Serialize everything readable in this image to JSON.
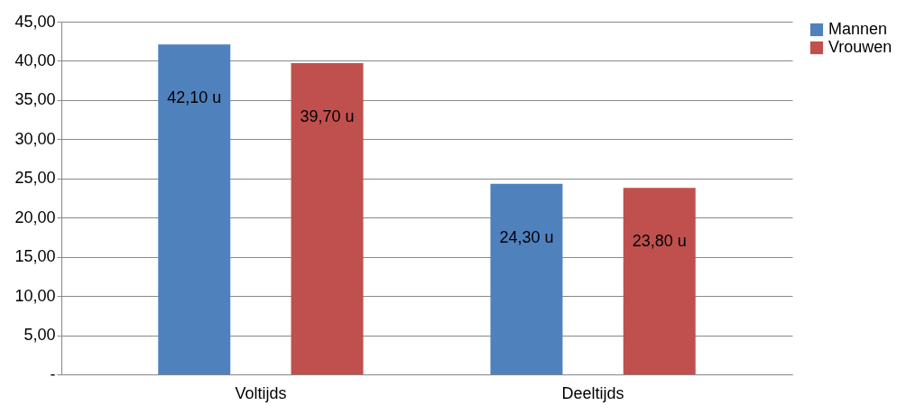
{
  "chart_data": {
    "type": "bar",
    "categories": [
      "Voltijds",
      "Deeltijds"
    ],
    "series": [
      {
        "name": "Mannen",
        "color": "#4f81bd",
        "values": [
          42.1,
          24.3
        ],
        "value_labels": [
          "42,10 u",
          "24,30 u"
        ]
      },
      {
        "name": "Vrouwen",
        "color": "#c0504d",
        "values": [
          39.7,
          23.8
        ],
        "value_labels": [
          "39,70 u",
          "23,80 u"
        ]
      }
    ],
    "ylim": [
      0,
      45
    ],
    "yticks": [
      {
        "value": 0,
        "label": "-"
      },
      {
        "value": 5,
        "label": "5,00"
      },
      {
        "value": 10,
        "label": "10,00"
      },
      {
        "value": 15,
        "label": "15,00"
      },
      {
        "value": 20,
        "label": "20,00"
      },
      {
        "value": 25,
        "label": "25,00"
      },
      {
        "value": 30,
        "label": "30,00"
      },
      {
        "value": 35,
        "label": "35,00"
      },
      {
        "value": 40,
        "label": "40,00"
      },
      {
        "value": 45,
        "label": "45,00"
      }
    ],
    "grid": "y",
    "legend": "right"
  }
}
